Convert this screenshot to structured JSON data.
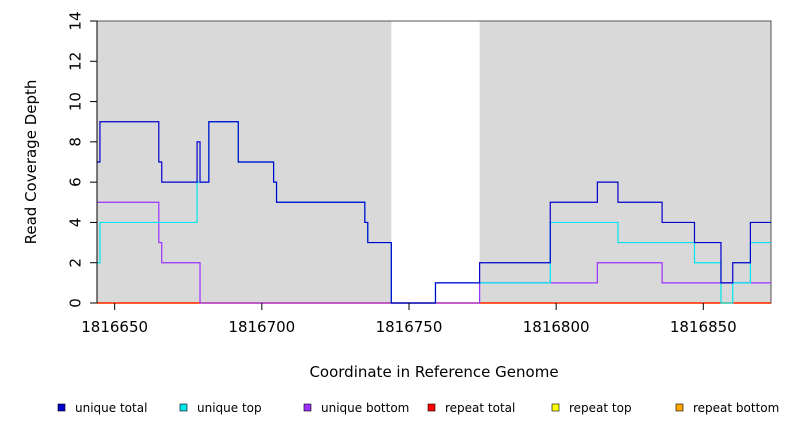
{
  "chart_data": {
    "type": "line",
    "xlabel": "Coordinate in Reference Genome",
    "ylabel": "Read Coverage Depth",
    "xlim": [
      1816644,
      1816873
    ],
    "ylim": [
      0,
      14
    ],
    "x_ticks": [
      1816650,
      1816700,
      1816750,
      1816800,
      1816850
    ],
    "x_tick_labels": [
      "1816650",
      "1816700",
      "1816750",
      "1816800",
      "1816850"
    ],
    "y_ticks": [
      0,
      2,
      4,
      6,
      8,
      10,
      12,
      14
    ],
    "y_tick_labels": [
      "0",
      "2",
      "4",
      "6",
      "8",
      "10",
      "12",
      "14"
    ],
    "shaded_regions": [
      {
        "start": 1816644,
        "end": 1816744,
        "color": "#d9d9d9"
      },
      {
        "start": 1816774,
        "end": 1816873,
        "color": "#d9d9d9"
      }
    ],
    "legend_position": "bottom",
    "series": [
      {
        "name": "unique total",
        "color": "#0000cd",
        "steps": [
          [
            1816644,
            7
          ],
          [
            1816645,
            9
          ],
          [
            1816665,
            7
          ],
          [
            1816666,
            6
          ],
          [
            1816678,
            8
          ],
          [
            1816679,
            6
          ],
          [
            1816682,
            9
          ],
          [
            1816692,
            7
          ],
          [
            1816704,
            6
          ],
          [
            1816705,
            5
          ],
          [
            1816735,
            4
          ],
          [
            1816736,
            3
          ],
          [
            1816744,
            0
          ],
          [
            1816759,
            1
          ],
          [
            1816774,
            2
          ],
          [
            1816798,
            5
          ],
          [
            1816814,
            6
          ],
          [
            1816821,
            5
          ],
          [
            1816836,
            4
          ],
          [
            1816847,
            3
          ],
          [
            1816856,
            1
          ],
          [
            1816860,
            2
          ],
          [
            1816866,
            4
          ],
          [
            1816873,
            4
          ]
        ]
      },
      {
        "name": "unique top",
        "color": "#00e5ee",
        "steps": [
          [
            1816644,
            2
          ],
          [
            1816645,
            4
          ],
          [
            1816678,
            6
          ],
          [
            1816682,
            9
          ],
          [
            1816692,
            7
          ],
          [
            1816704,
            6
          ],
          [
            1816705,
            5
          ],
          [
            1816735,
            4
          ],
          [
            1816736,
            3
          ],
          [
            1816744,
            0
          ],
          [
            1816759,
            1
          ],
          [
            1816774,
            1
          ],
          [
            1816798,
            4
          ],
          [
            1816821,
            3
          ],
          [
            1816847,
            2
          ],
          [
            1816856,
            0
          ],
          [
            1816860,
            1
          ],
          [
            1816866,
            3
          ],
          [
            1816873,
            3
          ]
        ]
      },
      {
        "name": "unique bottom",
        "color": "#9b30ff",
        "steps": [
          [
            1816644,
            5
          ],
          [
            1816665,
            3
          ],
          [
            1816666,
            2
          ],
          [
            1816679,
            0
          ],
          [
            1816774,
            1
          ],
          [
            1816814,
            2
          ],
          [
            1816836,
            1
          ],
          [
            1816873,
            1
          ]
        ]
      },
      {
        "name": "repeat total",
        "color": "#ff0000",
        "steps": [
          [
            1816644,
            0
          ],
          [
            1816873,
            0
          ]
        ]
      },
      {
        "name": "repeat top",
        "color": "#ffff00",
        "steps": [
          [
            1816644,
            0
          ],
          [
            1816873,
            0
          ]
        ]
      },
      {
        "name": "repeat bottom",
        "color": "#ffa500",
        "steps": [
          [
            1816644,
            0
          ],
          [
            1816873,
            0
          ]
        ]
      }
    ]
  }
}
